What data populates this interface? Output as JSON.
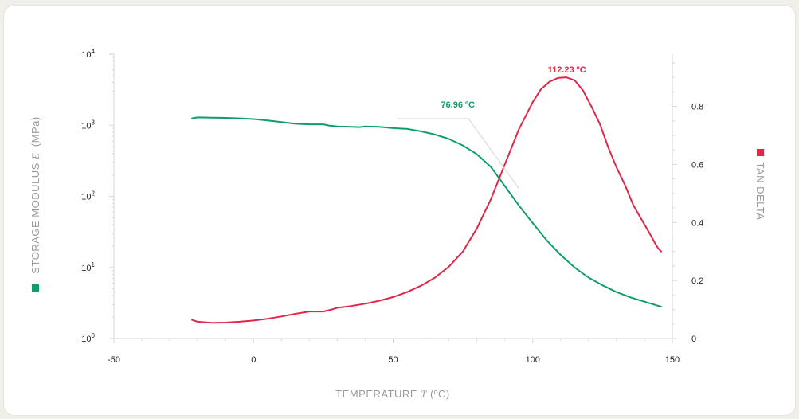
{
  "chart_data": {
    "type": "line",
    "xlabel": "TEMPERATURE",
    "xlabel_symbol": "T",
    "xlabel_unit": "(ºC)",
    "ylabel_left": "STORAGE MODULUS",
    "ylabel_left_symbol": "E′",
    "ylabel_left_unit": "(MPa)",
    "ylabel_right": "TAN DELTA",
    "xlim": [
      -50,
      150
    ],
    "x_ticks": [
      "-50",
      "0",
      "50",
      "100",
      "150"
    ],
    "x_tick_values": [
      -50,
      0,
      50,
      100,
      150
    ],
    "ylim_left_log10": [
      0,
      4
    ],
    "y_left_scale": "log",
    "y_left_ticks": [
      {
        "exp": 0,
        "base": "10",
        "sup": "0"
      },
      {
        "exp": 1,
        "base": "10",
        "sup": "1"
      },
      {
        "exp": 2,
        "base": "10",
        "sup": "2"
      },
      {
        "exp": 3,
        "base": "10",
        "sup": "3"
      },
      {
        "exp": 4,
        "base": "10",
        "sup": "4"
      }
    ],
    "ylim_right": [
      0,
      0.98
    ],
    "y_right_ticks": [
      "0",
      "0.2",
      "0.4",
      "0.6",
      "0.8"
    ],
    "y_right_tick_values": [
      0,
      0.2,
      0.4,
      0.6,
      0.8
    ],
    "grid": false,
    "series": [
      {
        "axis": "left",
        "color": "#0f9d6e",
        "x": [
          -22,
          -20,
          -15,
          -10,
          -5,
          0,
          5,
          10,
          15,
          20,
          25,
          27,
          30,
          35,
          38,
          40,
          45,
          50,
          55,
          60,
          65,
          70,
          75,
          80,
          85,
          90,
          95,
          100,
          105,
          110,
          115,
          120,
          125,
          130,
          135,
          140,
          146
        ],
        "y": [
          1250,
          1290,
          1280,
          1270,
          1250,
          1220,
          1170,
          1110,
          1050,
          1030,
          1030,
          990,
          960,
          950,
          940,
          960,
          950,
          910,
          890,
          820,
          740,
          640,
          520,
          390,
          260,
          140,
          75,
          42,
          24,
          15,
          10,
          7.2,
          5.6,
          4.5,
          3.8,
          3.3,
          2.8
        ]
      },
      {
        "axis": "right",
        "color": "#e0264a",
        "x": [
          -22,
          -20,
          -15,
          -10,
          -5,
          0,
          5,
          10,
          15,
          20,
          25,
          28,
          30,
          35,
          40,
          45,
          50,
          55,
          60,
          65,
          70,
          75,
          80,
          85,
          90,
          95,
          100,
          103,
          106,
          109,
          112,
          115,
          118,
          121,
          124,
          127,
          130,
          133,
          136,
          139,
          142,
          144,
          145,
          146
        ],
        "y": [
          0.064,
          0.058,
          0.054,
          0.055,
          0.058,
          0.062,
          0.068,
          0.076,
          0.085,
          0.093,
          0.093,
          0.1,
          0.106,
          0.112,
          0.12,
          0.13,
          0.143,
          0.16,
          0.182,
          0.21,
          0.248,
          0.3,
          0.38,
          0.48,
          0.6,
          0.72,
          0.815,
          0.86,
          0.885,
          0.898,
          0.9,
          0.89,
          0.855,
          0.8,
          0.74,
          0.66,
          0.59,
          0.53,
          0.46,
          0.41,
          0.36,
          0.325,
          0.31,
          0.3
        ]
      }
    ],
    "annotations": [
      {
        "text": "76.96 ºC",
        "color": "#0f9d6e",
        "x": 76.96
      },
      {
        "text": "112.23 ºC",
        "color": "#e0264a",
        "x": 112.23
      }
    ]
  }
}
